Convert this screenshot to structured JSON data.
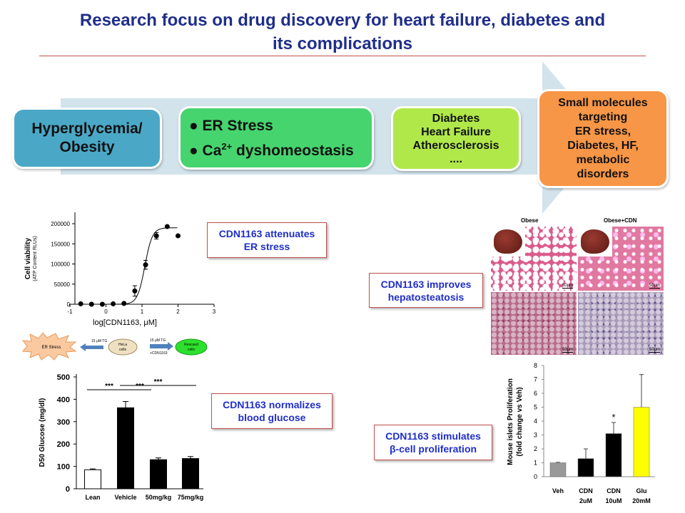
{
  "title": {
    "line1": "Research focus on drug discovery for heart failure, diabetes and",
    "line2": "its complications"
  },
  "flow": {
    "box1": {
      "line1": "Hyperglycemia/",
      "line2": "Obesity",
      "color": "#4aa8c6"
    },
    "box2": {
      "bullet1": "ER Stress",
      "bullet2_pre": "Ca",
      "bullet2_sup": "2+",
      "bullet2_post": " dyshomeostasis",
      "color": "#46d46e"
    },
    "box3": {
      "lines": [
        "Diabetes",
        "Heart Failure",
        "Atherosclerosis",
        "...."
      ],
      "color": "#b0e84a"
    },
    "box4": {
      "lines": [
        "Small molecules",
        "targeting",
        "ER stress,",
        "Diabetes, HF,",
        "metabolic",
        "disorders"
      ],
      "color": "#f79646"
    },
    "arrow_color": "#d3e3ec"
  },
  "callouts": {
    "er": {
      "line1": "CDN1163 attenuates",
      "line2": "ER stress"
    },
    "glucose": {
      "line1": "CDN1163 normalizes",
      "line2": "blood glucose"
    },
    "liver": {
      "line1": "CDN1163 improves",
      "line2": "hepatosteatosis"
    },
    "beta": {
      "line1": "CDN1163 stimulates",
      "line2": "β-cell proliferation"
    }
  },
  "schematic": {
    "er_stress": "ER Stress",
    "tg": "15 μM TG",
    "hela_line1": "HeLa",
    "hela_line2": "cells",
    "tg2": "15 μM TG",
    "cdn": "+CDN1163",
    "rescued_line1": "Rescued",
    "rescued_line2": "cells"
  },
  "histology": {
    "left_label": "Obese",
    "right_label": "Obese+CDN",
    "scale": "50μm"
  },
  "chart_data": [
    {
      "type": "scatter",
      "xlabel": "log[CDN1163, μM]",
      "ylabel": "Cell viability",
      "ylabel2": "(ATP Content RLUs)",
      "xlim": [
        -1,
        3
      ],
      "ylim": [
        0,
        200000
      ],
      "xticks": [
        "-1",
        "0",
        "1",
        "2",
        "3"
      ],
      "yticks": [
        "0",
        "50000",
        "100000",
        "150000",
        "200000"
      ],
      "x": [
        -0.7,
        -0.4,
        -0.1,
        0.2,
        0.5,
        0.8,
        1.1,
        1.4,
        1.7,
        2.0
      ],
      "y": [
        1000,
        0,
        0,
        1000,
        2000,
        33000,
        98000,
        170000,
        193000,
        170000
      ],
      "err": [
        0,
        0,
        0,
        0,
        0,
        13000,
        11000,
        8000,
        0,
        0
      ],
      "fit": "sigmoid"
    },
    {
      "type": "bar",
      "ylabel": "D50 Glucose (mg/dl)",
      "ylim": [
        0,
        500
      ],
      "yticks": [
        "0",
        "100",
        "200",
        "300",
        "400",
        "500"
      ],
      "categories": [
        "Lean",
        "Vehicle",
        "50mg/kg",
        "75mg/kg"
      ],
      "values": [
        85,
        362,
        130,
        135
      ],
      "err": [
        4,
        28,
        8,
        9
      ],
      "colors": [
        "#ffffff",
        "#000000",
        "#000000",
        "#000000"
      ],
      "significance": [
        {
          "from": 0,
          "to": 1,
          "label": "***"
        },
        {
          "from": 1,
          "to": 2,
          "label": "***"
        },
        {
          "from": 1,
          "to": 3,
          "label": "***"
        }
      ]
    },
    {
      "type": "bar",
      "ylabel": "Mouse islets Proliferation",
      "ylabel2": "(fold change vs Veh)",
      "ylim": [
        0,
        8
      ],
      "yticks": [
        "0",
        "1",
        "2",
        "3",
        "4",
        "5",
        "6",
        "7",
        "8"
      ],
      "categories": [
        [
          "Veh",
          ""
        ],
        [
          "CDN",
          "2uM"
        ],
        [
          "CDN",
          "10uM"
        ],
        [
          "Glu",
          "20mM"
        ]
      ],
      "values": [
        1.0,
        1.3,
        3.1,
        5.0
      ],
      "err": [
        0.03,
        0.7,
        0.8,
        2.35
      ],
      "colors": [
        "#999999",
        "#000000",
        "#000000",
        "#ffff00"
      ],
      "annotations": [
        {
          "bar": 2,
          "label": "*"
        }
      ]
    }
  ]
}
